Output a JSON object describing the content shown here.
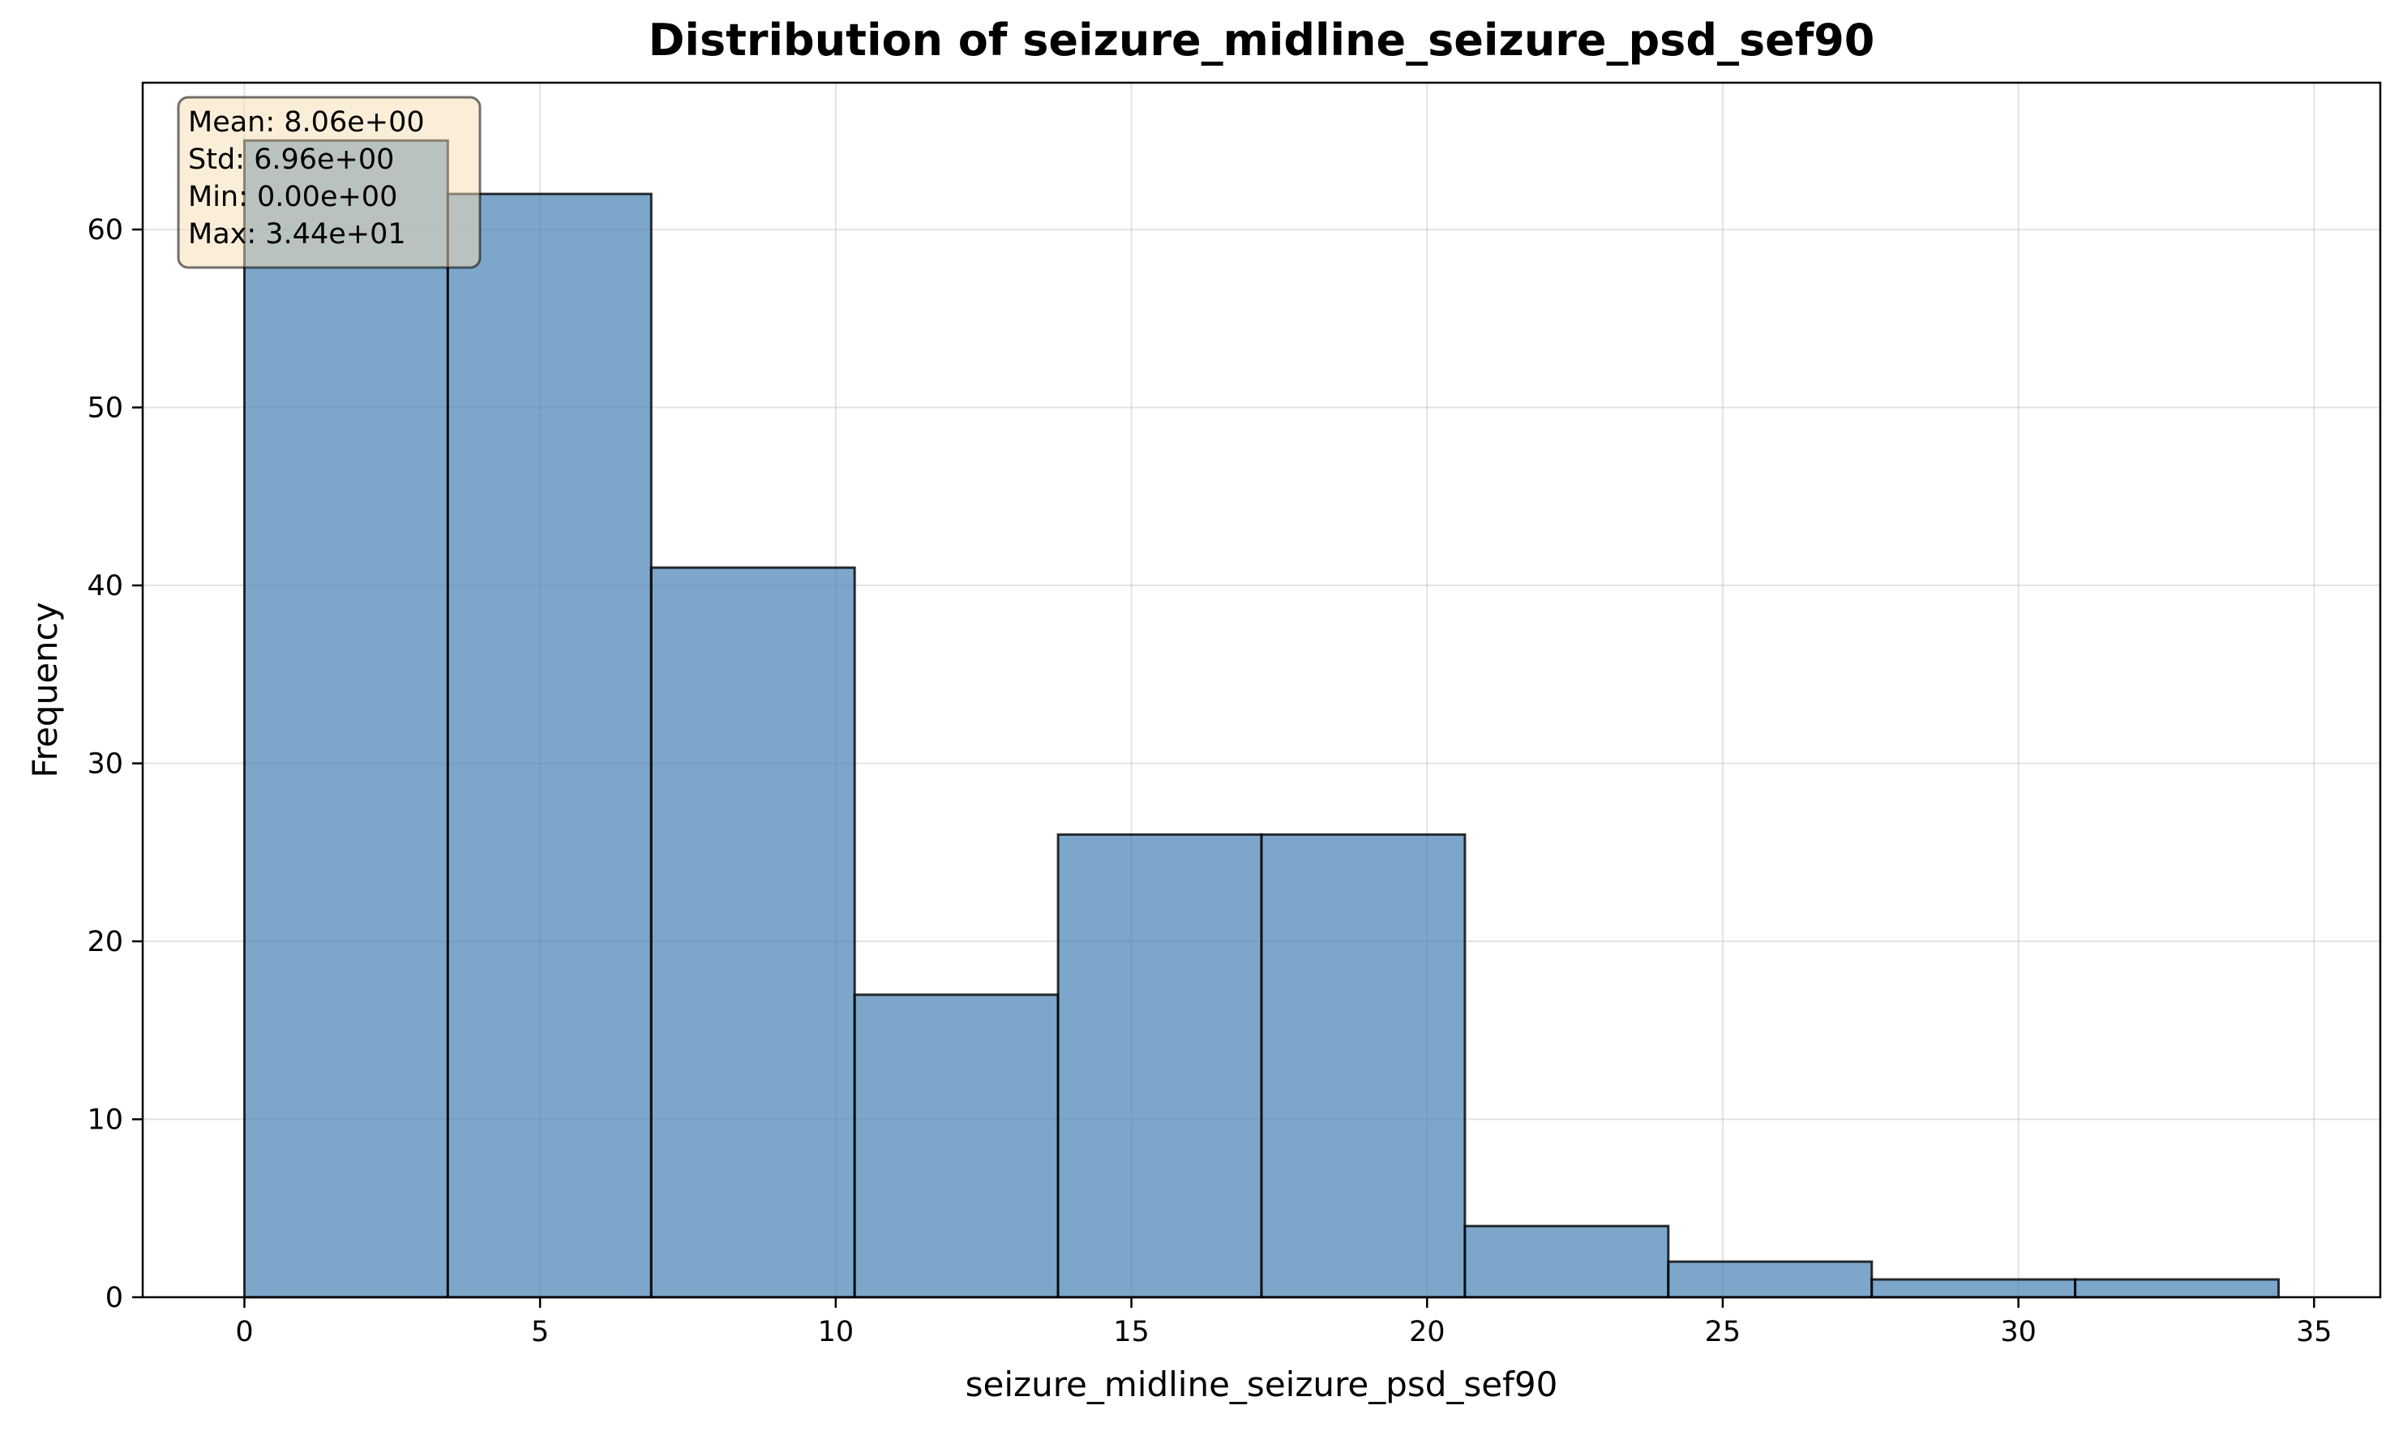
{
  "chart_data": {
    "type": "bar",
    "title": "Distribution of seizure_midline_seizure_psd_sef90",
    "xlabel": "seizure_midline_seizure_psd_sef90",
    "ylabel": "Frequency",
    "xlim": [
      -1.72,
      36.12
    ],
    "ylim": [
      0,
      68.25
    ],
    "xticks": [
      0,
      5,
      10,
      15,
      20,
      25,
      30,
      35
    ],
    "yticks": [
      0,
      10,
      20,
      30,
      40,
      50,
      60
    ],
    "grid": true,
    "bin_edges": [
      0,
      3.44,
      6.88,
      10.32,
      13.76,
      17.2,
      20.64,
      24.08,
      27.52,
      30.96,
      34.4
    ],
    "values": [
      65,
      62,
      41,
      17,
      26,
      26,
      4,
      2,
      1,
      1
    ],
    "bar_color": "#4682b4",
    "edge_color": "#000000",
    "stats": {
      "lines": [
        "Mean: 8.06e+00",
        "Std: 6.96e+00",
        "Min: 0.00e+00",
        "Max: 3.44e+01"
      ],
      "placement": "top-left",
      "background": "#f5deb3"
    }
  }
}
